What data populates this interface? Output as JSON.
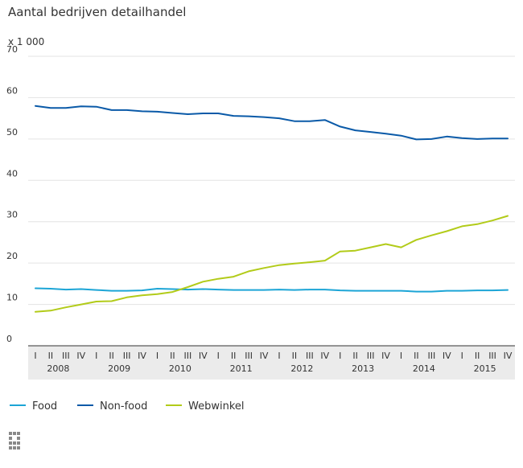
{
  "chart_data": {
    "type": "line",
    "title": "Aantal bedrijven detailhandel",
    "unit_label": "x 1 000",
    "ylim": [
      0,
      70
    ],
    "y_ticks": [
      0,
      10,
      20,
      30,
      40,
      50,
      60,
      70
    ],
    "grid": true,
    "legend_position": "bottom-left",
    "quarter_labels": [
      "I",
      "II",
      "III",
      "IV",
      "I",
      "II",
      "III",
      "IV",
      "I",
      "II",
      "III",
      "IV",
      "I",
      "II",
      "III",
      "IV",
      "I",
      "II",
      "III",
      "IV",
      "I",
      "II",
      "III",
      "IV",
      "I",
      "II",
      "III",
      "IV",
      "I",
      "II",
      "III",
      "IV"
    ],
    "years": [
      "2008",
      "2009",
      "2010",
      "2011",
      "2012",
      "2013",
      "2014",
      "2015"
    ],
    "series": [
      {
        "name": "Food",
        "color": "#1ca5d6",
        "values": [
          13.9,
          13.8,
          13.6,
          13.7,
          13.5,
          13.3,
          13.3,
          13.4,
          13.8,
          13.7,
          13.6,
          13.7,
          13.6,
          13.5,
          13.5,
          13.5,
          13.6,
          13.5,
          13.6,
          13.6,
          13.4,
          13.3,
          13.3,
          13.3,
          13.3,
          13.1,
          13.1,
          13.3,
          13.3,
          13.4,
          13.4,
          13.5
        ]
      },
      {
        "name": "Non-food",
        "color": "#0a5aa8",
        "values": [
          58.0,
          57.5,
          57.5,
          57.9,
          57.8,
          57.0,
          57.0,
          56.7,
          56.6,
          56.3,
          56.0,
          56.2,
          56.2,
          55.6,
          55.5,
          55.3,
          55.0,
          54.3,
          54.3,
          54.6,
          53.0,
          52.1,
          51.7,
          51.3,
          50.8,
          49.9,
          50.0,
          50.6,
          50.2,
          50.0,
          50.1,
          50.1
        ]
      },
      {
        "name": "Webwinkel",
        "color": "#b2cb19",
        "values": [
          8.2,
          8.5,
          9.3,
          10.0,
          10.7,
          10.8,
          11.7,
          12.2,
          12.5,
          13.0,
          14.2,
          15.5,
          16.2,
          16.7,
          18.0,
          18.8,
          19.5,
          19.9,
          20.2,
          20.6,
          22.8,
          23.0,
          23.8,
          24.6,
          23.8,
          25.6,
          26.7,
          27.7,
          28.9,
          29.4,
          30.3,
          31.4
        ]
      }
    ]
  }
}
